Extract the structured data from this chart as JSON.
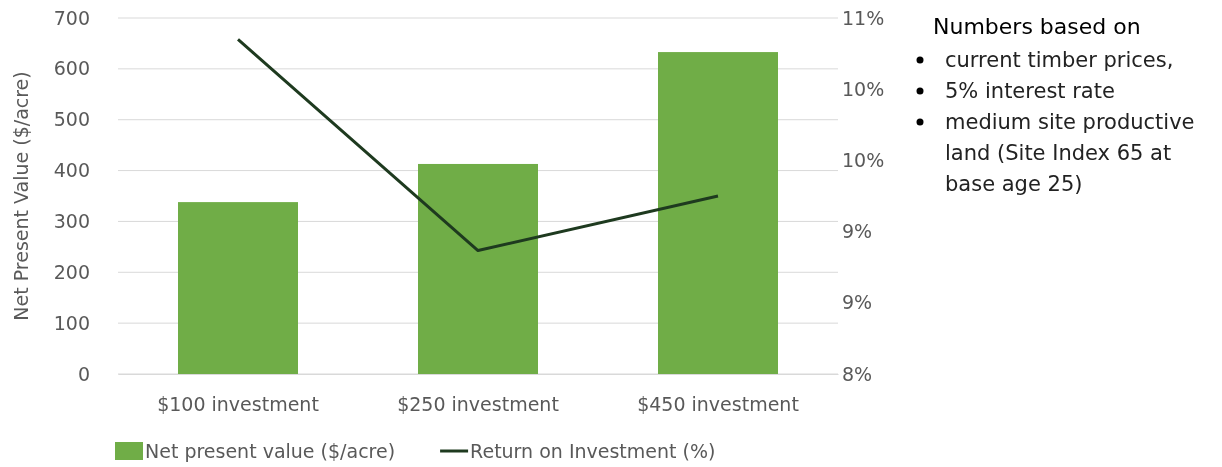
{
  "chart_data": {
    "type": "bar",
    "categories": [
      "$100 investment",
      "$250 investment",
      "$450 investment"
    ],
    "ylabel": "Net Present Value ($/acre)",
    "series": [
      {
        "name": "Net present value ($/acre)",
        "color": "#70ad47",
        "values": [
          338,
          413,
          633
        ]
      },
      {
        "name": "Return on Investment (%)",
        "type": "line",
        "axis": "y2",
        "color": "#1e3a1f",
        "values": [
          10.82,
          9.04,
          9.5
        ]
      }
    ],
    "ylim": [
      0,
      700
    ],
    "yticks": [
      0,
      100,
      200,
      300,
      400,
      500,
      600,
      700
    ],
    "y2lim": [
      8,
      11
    ],
    "y2ticks": [
      {
        "value": 8,
        "label": "8%"
      },
      {
        "value": 8.6,
        "label": "9%"
      },
      {
        "value": 9.2,
        "label": "9%"
      },
      {
        "value": 9.8,
        "label": "10%"
      },
      {
        "value": 10.4,
        "label": "10%"
      },
      {
        "value": 11,
        "label": "11%"
      }
    ],
    "grid": "y",
    "legend": "bottom",
    "marker": "none",
    "line_style": "solid",
    "annotations": [
      "Numbers based on",
      "current timber prices,",
      "5% interest rate",
      "medium site productive land (Site Index 65 at base age 25)"
    ]
  }
}
